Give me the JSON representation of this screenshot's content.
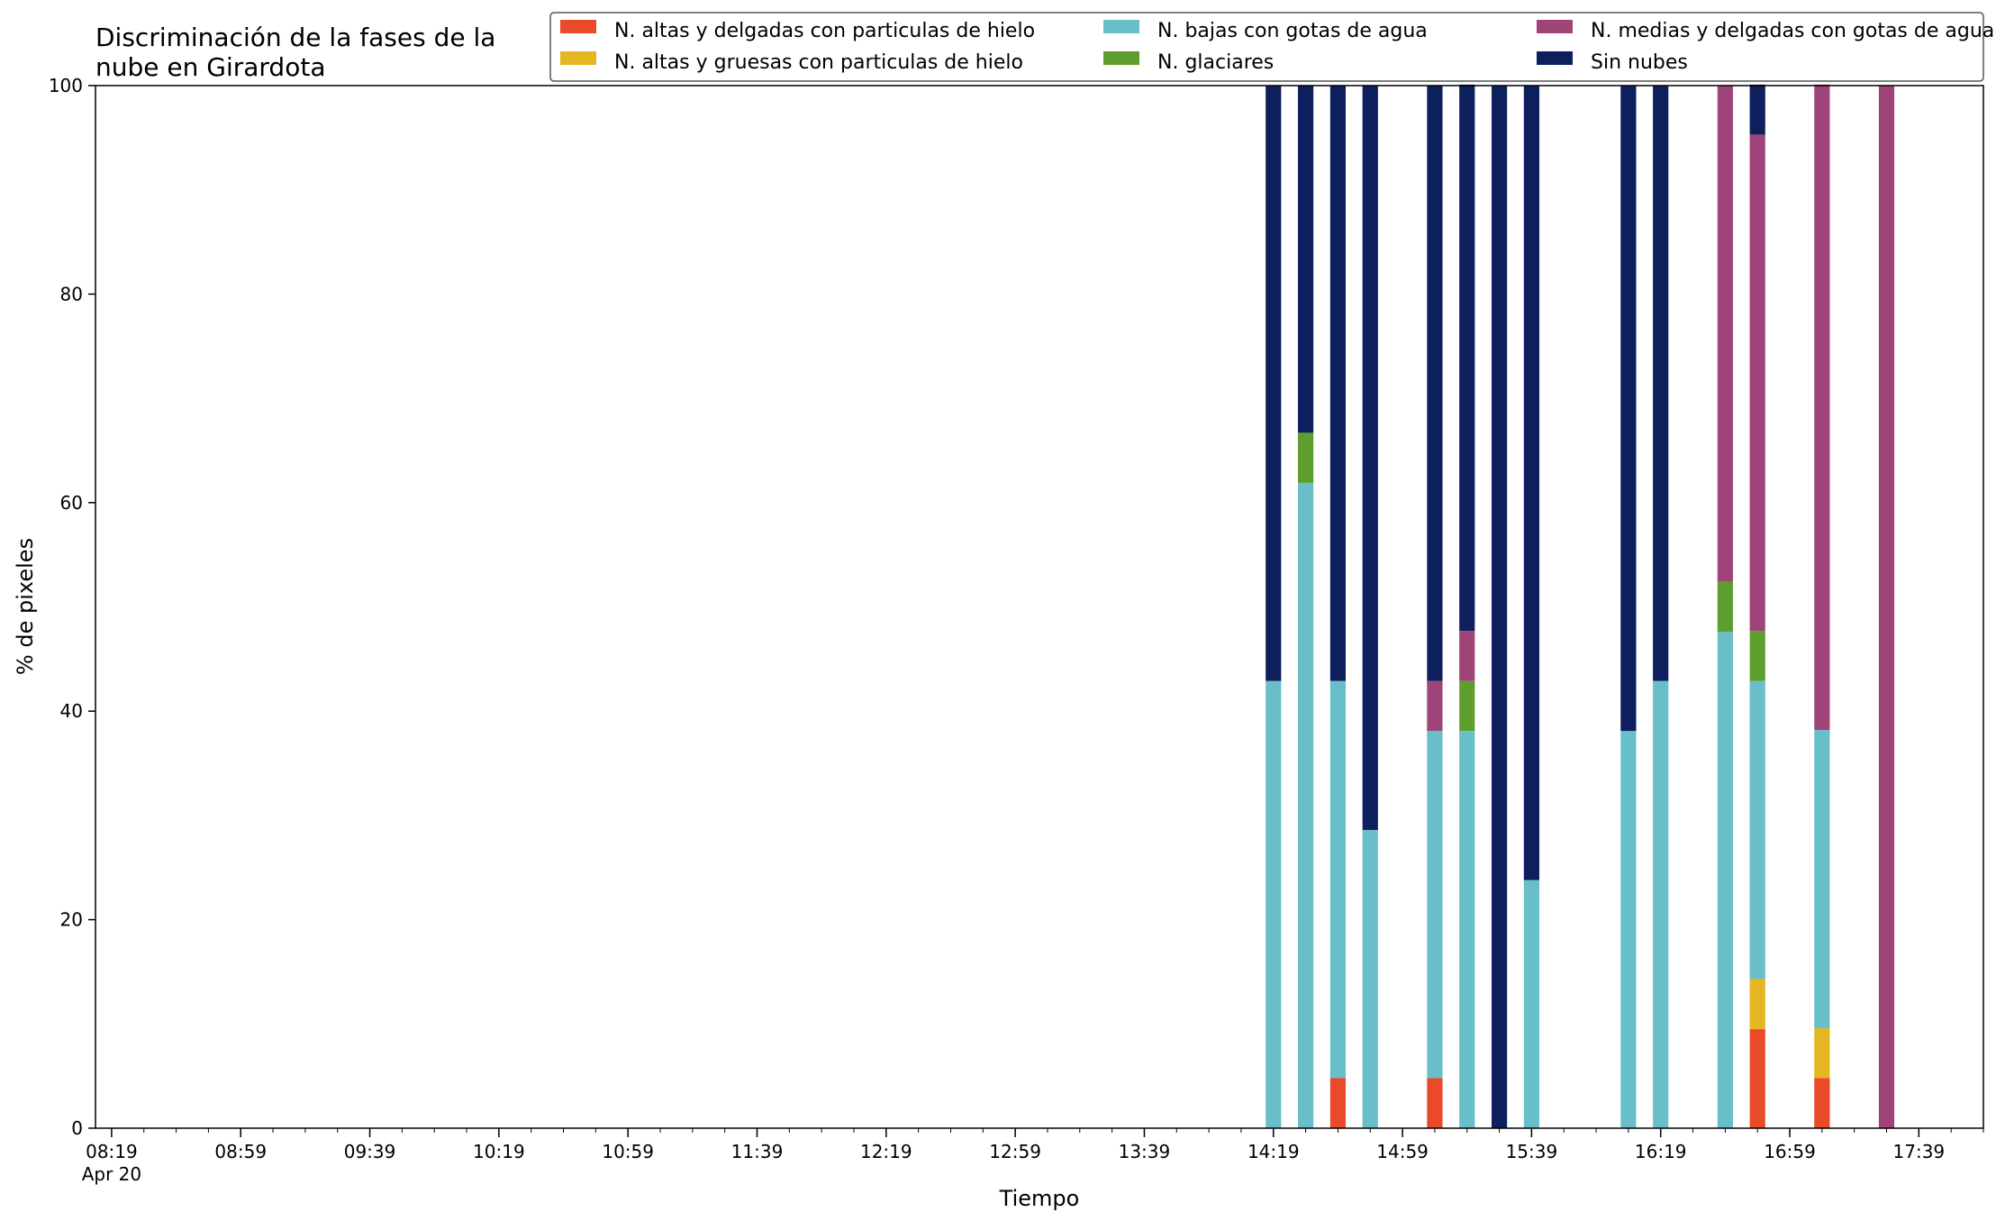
{
  "chart_data": {
    "type": "bar",
    "stacked": true,
    "title_lines": [
      "Discriminación de la fases de la",
      "nube en Girardota"
    ],
    "xlabel": "Tiempo",
    "ylabel": "% de pixeles",
    "ylim": [
      0,
      100
    ],
    "yticks": [
      0,
      20,
      40,
      60,
      80,
      100
    ],
    "xlim": [
      "08:14",
      "17:59"
    ],
    "xtick_labels": [
      "08:19",
      "08:59",
      "09:39",
      "10:19",
      "10:59",
      "11:39",
      "12:19",
      "12:59",
      "13:39",
      "14:19",
      "14:59",
      "15:39",
      "16:19",
      "16:59",
      "17:39"
    ],
    "xtick_date_label": "Apr 20",
    "minor_tick_interval_minutes": 10,
    "legend_position": "top-right",
    "legend_columns": 3,
    "times": [
      "14:19",
      "14:29",
      "14:39",
      "14:49",
      "15:09",
      "15:19",
      "15:29",
      "15:39",
      "16:09",
      "16:19",
      "16:39",
      "16:49",
      "17:09",
      "17:29"
    ],
    "series": [
      {
        "name": "N. altas y delgadas con particulas de hielo",
        "color": "#e84a2a",
        "values": [
          0,
          0,
          4.8,
          0,
          4.8,
          0,
          0,
          0,
          0,
          0,
          0,
          9.5,
          4.8,
          0
        ]
      },
      {
        "name": "N. altas y gruesas con particulas de hielo",
        "color": "#e5b622",
        "values": [
          0,
          0,
          0,
          0,
          0,
          0,
          0,
          0,
          0,
          0,
          0,
          4.8,
          4.8,
          0
        ]
      },
      {
        "name": "N. bajas con gotas de agua",
        "color": "#68bfca",
        "values": [
          42.9,
          61.9,
          38.1,
          28.6,
          33.3,
          38.1,
          0,
          23.8,
          38.1,
          42.9,
          47.6,
          28.6,
          28.6,
          0
        ]
      },
      {
        "name": "N. glaciares",
        "color": "#5e9e2e",
        "values": [
          0,
          4.8,
          0,
          0,
          0,
          4.8,
          0,
          0,
          0,
          0,
          4.8,
          4.8,
          0,
          0
        ]
      },
      {
        "name": "N. medias y delgadas con gotas de agua",
        "color": "#9e4478",
        "values": [
          0,
          0,
          0,
          0,
          4.8,
          4.8,
          0,
          0,
          0,
          0,
          47.6,
          47.6,
          61.9,
          100
        ]
      },
      {
        "name": "Sin nubes",
        "color": "#0d1f5c",
        "values": [
          57.1,
          33.3,
          57.1,
          71.4,
          57.1,
          52.4,
          100,
          76.2,
          61.9,
          57.1,
          0,
          4.8,
          0,
          0
        ]
      }
    ]
  }
}
